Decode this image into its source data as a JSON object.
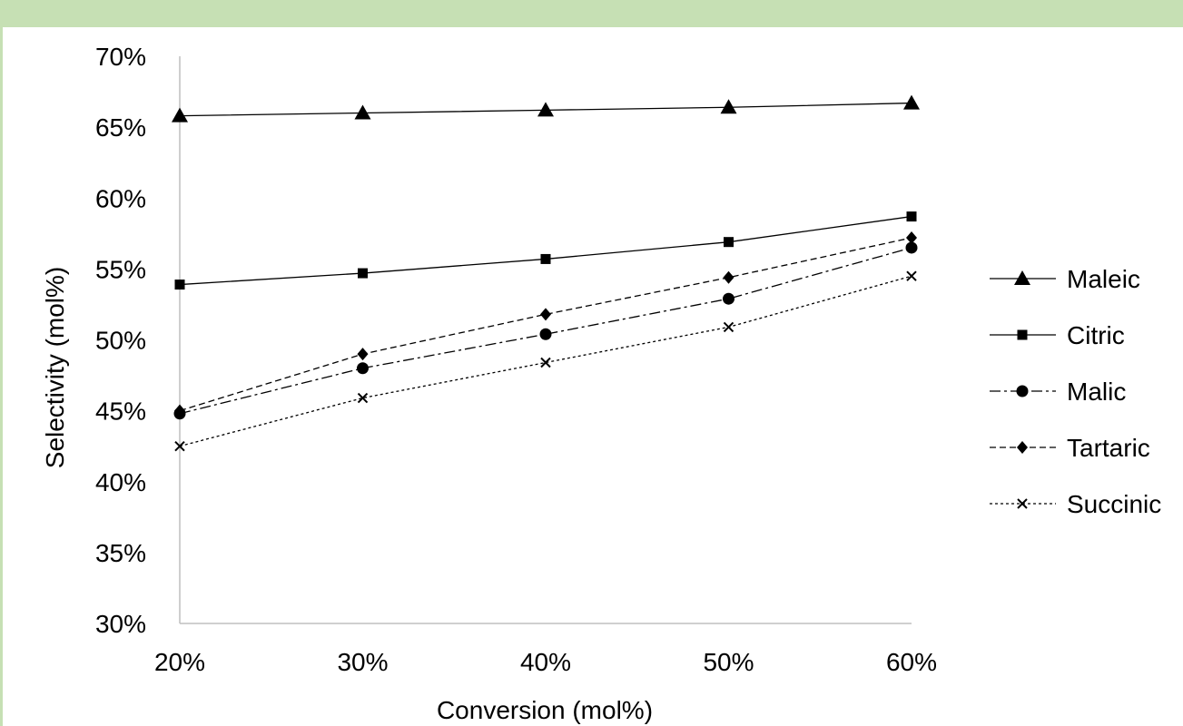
{
  "chart_data": {
    "type": "line",
    "title": "",
    "xlabel": "Conversion (mol%)",
    "ylabel": "Selectivity (mol%)",
    "x": [
      0.2,
      0.3,
      0.4,
      0.5,
      0.6
    ],
    "xlim": [
      0.2,
      0.6
    ],
    "ylim": [
      0.3,
      0.7
    ],
    "xticks": [
      0.2,
      0.3,
      0.4,
      0.5,
      0.6
    ],
    "xtick_labels": [
      "20%",
      "30%",
      "40%",
      "50%",
      "60%"
    ],
    "yticks": [
      0.3,
      0.35,
      0.4,
      0.45,
      0.5,
      0.55,
      0.6,
      0.65,
      0.7
    ],
    "ytick_labels": [
      "30%",
      "35%",
      "40%",
      "45%",
      "50%",
      "55%",
      "60%",
      "65%",
      "70%"
    ],
    "grid": false,
    "legend_position": "right",
    "series": [
      {
        "name": "Maleic",
        "values": [
          0.658,
          0.66,
          0.662,
          0.664,
          0.667
        ],
        "marker": "triangle",
        "line_style": "solid"
      },
      {
        "name": "Citric",
        "values": [
          0.539,
          0.547,
          0.557,
          0.569,
          0.587
        ],
        "marker": "square",
        "line_style": "solid"
      },
      {
        "name": "Malic",
        "values": [
          0.448,
          0.48,
          0.504,
          0.529,
          0.565
        ],
        "marker": "circle",
        "line_style": "dash-dot"
      },
      {
        "name": "Tartaric",
        "values": [
          0.45,
          0.49,
          0.518,
          0.544,
          0.572
        ],
        "marker": "diamond",
        "line_style": "dashed"
      },
      {
        "name": "Succinic",
        "values": [
          0.425,
          0.459,
          0.484,
          0.509,
          0.545
        ],
        "marker": "x",
        "line_style": "dotted"
      }
    ]
  }
}
